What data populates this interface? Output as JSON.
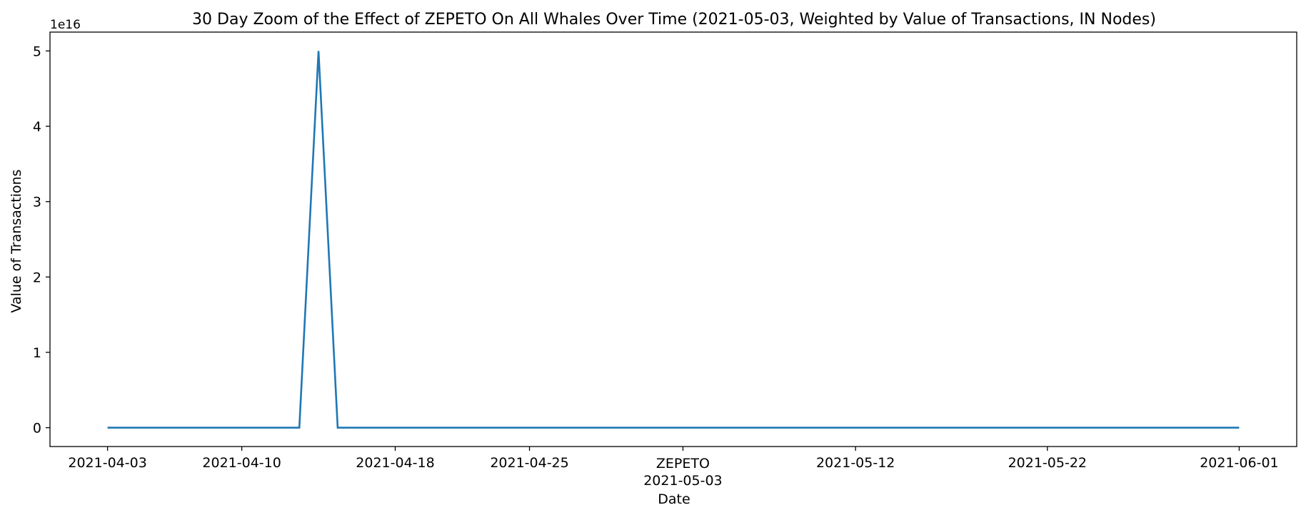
{
  "chart_data": {
    "type": "line",
    "title": "30 Day Zoom of the Effect of ZEPETO On All Whales Over Time (2021-05-03, Weighted by Value of Transactions, IN Nodes)",
    "xlabel": "Date",
    "ylabel": "Value of Transactions",
    "y_offset_label": "1e16",
    "y_scale_exponent": 16,
    "xlim": [
      "2021-03-31",
      "2021-06-04"
    ],
    "ylim": [
      -0.25,
      5.25
    ],
    "grid": false,
    "line_color": "#1f77b4",
    "x_ticks": [
      {
        "date": "2021-04-03",
        "label": "2021-04-03"
      },
      {
        "date": "2021-04-10",
        "label": "2021-04-10"
      },
      {
        "date": "2021-04-18",
        "label": "2021-04-18"
      },
      {
        "date": "2021-04-25",
        "label": "2021-04-25"
      },
      {
        "date": "2021-05-03",
        "label": "2021-05-03"
      },
      {
        "date": "2021-05-12",
        "label": "2021-05-12"
      },
      {
        "date": "2021-05-22",
        "label": "2021-05-22"
      },
      {
        "date": "2021-06-01",
        "label": "2021-06-01"
      }
    ],
    "y_ticks": [
      0,
      1,
      2,
      3,
      4,
      5
    ],
    "annotations": [
      {
        "date": "2021-05-03",
        "text": "ZEPETO"
      }
    ],
    "series": [
      {
        "points": [
          {
            "x": "2021-04-03",
            "y": 0
          },
          {
            "x": "2021-04-13",
            "y": 0
          },
          {
            "x": "2021-04-14",
            "y": 5
          },
          {
            "x": "2021-04-15",
            "y": 0
          },
          {
            "x": "2021-06-01",
            "y": 0
          }
        ]
      }
    ]
  }
}
